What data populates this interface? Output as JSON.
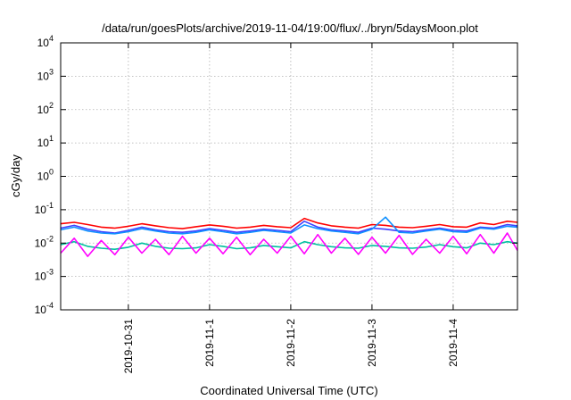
{
  "chart_data": {
    "type": "line",
    "title": "/data/run/goesPlots/archive/2019-11-04/19:00/flux/../bryn/5daysMoon.plot",
    "xlabel": "Coordinated Universal Time (UTC)",
    "ylabel": "cGy/day",
    "y_scale": "log",
    "ylim": [
      0.0001,
      10000
    ],
    "y_ticks": [
      {
        "base": "10",
        "exp": "-4",
        "value": 0.0001
      },
      {
        "base": "10",
        "exp": "-3",
        "value": 0.001
      },
      {
        "base": "10",
        "exp": "-2",
        "value": 0.01
      },
      {
        "base": "10",
        "exp": "-1",
        "value": 0.1
      },
      {
        "base": "10",
        "exp": "0",
        "value": 1
      },
      {
        "base": "10",
        "exp": "1",
        "value": 10
      },
      {
        "base": "10",
        "exp": "2",
        "value": 100
      },
      {
        "base": "10",
        "exp": "3",
        "value": 1000
      },
      {
        "base": "10",
        "exp": "4",
        "value": 10000
      }
    ],
    "xlim": [
      "2019-10-30T04:00",
      "2019-11-04T19:00"
    ],
    "x_ticks": [
      {
        "label": "2019-10-31",
        "date": "2019-10-31T00:00"
      },
      {
        "label": "2019-11-1",
        "date": "2019-11-01T00:00"
      },
      {
        "label": "2019-11-2",
        "date": "2019-11-02T00:00"
      },
      {
        "label": "2019-11-3",
        "date": "2019-11-03T00:00"
      },
      {
        "label": "2019-11-4",
        "date": "2019-11-04T00:00"
      }
    ],
    "grid": true,
    "x": [
      "2019-10-30T04:00",
      "2019-10-30T08:00",
      "2019-10-30T12:00",
      "2019-10-30T16:00",
      "2019-10-30T20:00",
      "2019-10-31T00:00",
      "2019-10-31T04:00",
      "2019-10-31T08:00",
      "2019-10-31T12:00",
      "2019-10-31T16:00",
      "2019-10-31T20:00",
      "2019-11-01T00:00",
      "2019-11-01T04:00",
      "2019-11-01T08:00",
      "2019-11-01T12:00",
      "2019-11-01T16:00",
      "2019-11-01T20:00",
      "2019-11-02T00:00",
      "2019-11-02T04:00",
      "2019-11-02T08:00",
      "2019-11-02T12:00",
      "2019-11-02T16:00",
      "2019-11-02T20:00",
      "2019-11-03T00:00",
      "2019-11-03T04:00",
      "2019-11-03T08:00",
      "2019-11-03T12:00",
      "2019-11-03T16:00",
      "2019-11-03T20:00",
      "2019-11-04T00:00",
      "2019-11-04T04:00",
      "2019-11-04T08:00",
      "2019-11-04T12:00",
      "2019-11-04T16:00",
      "2019-11-04T19:00"
    ],
    "series": [
      {
        "color": "#ff0000",
        "values": [
          0.038,
          0.042,
          0.036,
          0.03,
          0.028,
          0.032,
          0.038,
          0.033,
          0.029,
          0.027,
          0.031,
          0.035,
          0.032,
          0.028,
          0.03,
          0.034,
          0.031,
          0.029,
          0.055,
          0.04,
          0.033,
          0.03,
          0.028,
          0.036,
          0.034,
          0.03,
          0.029,
          0.032,
          0.036,
          0.031,
          0.03,
          0.04,
          0.036,
          0.045,
          0.042
        ]
      },
      {
        "color": "#00c0a0",
        "values": [
          0.009,
          0.011,
          0.008,
          0.007,
          0.0065,
          0.0075,
          0.01,
          0.008,
          0.007,
          0.0068,
          0.0072,
          0.009,
          0.008,
          0.0068,
          0.0072,
          0.0085,
          0.0078,
          0.0072,
          0.011,
          0.009,
          0.0078,
          0.0072,
          0.007,
          0.0085,
          0.008,
          0.0072,
          0.007,
          0.0076,
          0.009,
          0.0078,
          0.0072,
          0.01,
          0.009,
          0.011,
          0.01
        ]
      },
      {
        "color": "#4040ff",
        "values": [
          0.028,
          0.034,
          0.026,
          0.022,
          0.02,
          0.024,
          0.03,
          0.025,
          0.022,
          0.021,
          0.023,
          0.027,
          0.024,
          0.021,
          0.023,
          0.026,
          0.024,
          0.022,
          0.045,
          0.03,
          0.025,
          0.023,
          0.021,
          0.028,
          0.026,
          0.023,
          0.022,
          0.025,
          0.028,
          0.024,
          0.023,
          0.03,
          0.028,
          0.036,
          0.033
        ]
      },
      {
        "color": "#1090ff",
        "values": [
          0.025,
          0.03,
          0.023,
          0.02,
          0.019,
          0.022,
          0.027,
          0.023,
          0.02,
          0.019,
          0.021,
          0.025,
          0.022,
          0.019,
          0.021,
          0.024,
          0.022,
          0.02,
          0.035,
          0.027,
          0.023,
          0.021,
          0.019,
          0.026,
          0.06,
          0.021,
          0.02,
          0.023,
          0.026,
          0.022,
          0.021,
          0.028,
          0.026,
          0.032,
          0.03
        ]
      },
      {
        "color": "#ff00ff",
        "values": [
          0.005,
          0.014,
          0.004,
          0.012,
          0.0045,
          0.015,
          0.005,
          0.013,
          0.0045,
          0.016,
          0.005,
          0.014,
          0.0048,
          0.015,
          0.0045,
          0.013,
          0.005,
          0.016,
          0.0048,
          0.018,
          0.005,
          0.014,
          0.0046,
          0.015,
          0.005,
          0.017,
          0.0046,
          0.013,
          0.005,
          0.016,
          0.0048,
          0.018,
          0.005,
          0.02,
          0.006
        ]
      }
    ]
  }
}
